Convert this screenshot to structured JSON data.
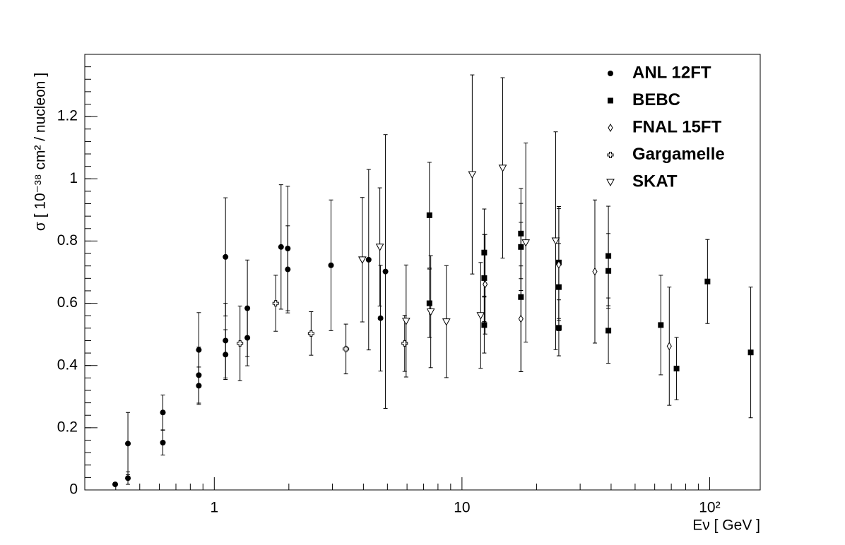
{
  "chart_data": {
    "type": "scatter",
    "xlabel": "Eν  [ GeV ]",
    "ylabel": "σ  [ 10⁻³⁸ cm² / nucleon ]",
    "xscale": "log",
    "xlim": [
      0.3,
      160
    ],
    "ylim": [
      0,
      1.4
    ],
    "xticks": [
      1,
      10,
      {
        "value": 100,
        "label": "10²"
      }
    ],
    "yticks": [
      0,
      0.2,
      0.4,
      0.6,
      0.8,
      1,
      1.2
    ],
    "legend": "upper right",
    "series": [
      {
        "name": "ANL 12FT",
        "color": "#000000",
        "marker": "circle",
        "x": [
          0.398,
          0.448,
          0.448,
          0.62,
          0.62,
          0.866,
          0.866,
          0.866,
          1.11,
          1.11,
          1.11,
          1.36,
          1.36,
          1.86,
          1.98,
          1.98,
          2.96,
          4.2,
          4.69,
          4.91
        ],
        "values": [
          0.018,
          0.038,
          0.149,
          0.249,
          0.152,
          0.45,
          0.369,
          0.335,
          0.749,
          0.48,
          0.435,
          0.584,
          0.489,
          0.781,
          0.776,
          0.709,
          0.722,
          0.74,
          0.552,
          0.702
        ],
        "errors": [
          0.005,
          0.02,
          0.1,
          0.056,
          0.04,
          0.12,
          0.09,
          0.06,
          0.19,
          0.12,
          0.08,
          0.155,
          0.09,
          0.2,
          0.2,
          0.14,
          0.21,
          0.29,
          0.17,
          0.44
        ]
      },
      {
        "name": "BEBC",
        "color": "#000000",
        "marker": "square",
        "x": [
          7.39,
          7.39,
          12.3,
          12.3,
          12.3,
          17.3,
          17.3,
          17.3,
          24.6,
          24.6,
          24.6,
          39,
          39,
          39,
          63.5,
          73.5,
          98,
          146.5
        ],
        "values": [
          0.883,
          0.6,
          0.763,
          0.681,
          0.53,
          0.824,
          0.781,
          0.62,
          0.731,
          0.652,
          0.521,
          0.752,
          0.704,
          0.512,
          0.53,
          0.39,
          0.67,
          0.442
        ],
        "errors": [
          0.17,
          0.11,
          0.14,
          0.14,
          0.09,
          0.145,
          0.14,
          0.24,
          0.18,
          0.14,
          0.09,
          0.16,
          0.12,
          0.105,
          0.16,
          0.1,
          0.135,
          0.21
        ]
      },
      {
        "name": "FNAL 15FT",
        "color": "#000000",
        "marker": "diamond",
        "x": [
          12.4,
          17.3,
          24.6,
          34.4,
          68.7
        ],
        "values": [
          0.661,
          0.55,
          0.724,
          0.702,
          0.462
        ],
        "errors": [
          0.16,
          0.17,
          0.18,
          0.23,
          0.19
        ]
      },
      {
        "name": "Gargamelle",
        "color": "#000000",
        "marker": "cross",
        "x": [
          1.27,
          1.77,
          2.46,
          3.4,
          5.87
        ],
        "values": [
          0.471,
          0.6,
          0.503,
          0.453,
          0.471
        ],
        "errors": [
          0.12,
          0.09,
          0.07,
          0.08,
          0.09
        ]
      },
      {
        "name": "SKAT",
        "color": "#000000",
        "marker": "triangle-down",
        "x": [
          3.96,
          4.66,
          5.95,
          7.48,
          8.65,
          11.0,
          11.9,
          14.6,
          18.1,
          23.9
        ],
        "values": [
          0.74,
          0.781,
          0.543,
          0.573,
          0.541,
          1.014,
          0.561,
          1.035,
          0.795,
          0.801
        ],
        "errors": [
          0.2,
          0.19,
          0.18,
          0.18,
          0.18,
          0.32,
          0.17,
          0.29,
          0.32,
          0.35
        ]
      }
    ]
  }
}
